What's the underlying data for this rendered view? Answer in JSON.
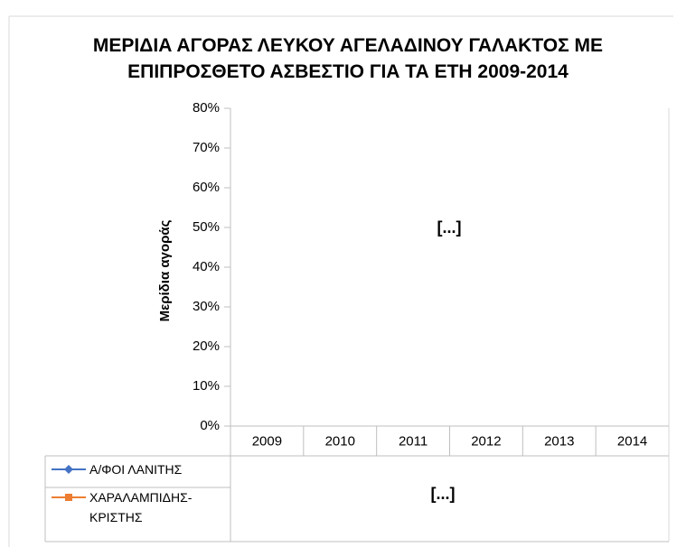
{
  "chart_data": {
    "type": "line",
    "title": "ΜΕΡΙΔΙΑ ΑΓΟΡΑΣ ΛΕΥΚΟΥ ΑΓΕΛΑΔΙΝΟΥ ΓΑΛΑΚΤΟΣ ΜΕ ΕΠΙΠΡΟΣΘΕΤΟ ΑΣΒΕΣΤΙΟ ΓΙΑ ΤΑ ΕΤΗ 2009-2014",
    "y_label": "Μερίδια αγοράς",
    "categories": [
      "2009",
      "2010",
      "2011",
      "2012",
      "2013",
      "2014"
    ],
    "series": [
      {
        "name": "Α/ΦΟΙ ΛΑΝΙΤΗΣ",
        "color": "#4472c4",
        "values": [
          null,
          null,
          null,
          null,
          null,
          null
        ]
      },
      {
        "name": "ΧΑΡΑΛΑΜΠΙΔΗΣ-ΚΡΙΣΤΗΣ",
        "color": "#ed7d31",
        "values": [
          null,
          null,
          null,
          null,
          null,
          null
        ]
      }
    ],
    "annotations": [
      "[...]",
      "[...]"
    ],
    "ylim": [
      0,
      80
    ],
    "yticks": [
      {
        "value": 0,
        "label": "0%"
      },
      {
        "value": 10,
        "label": "10%"
      },
      {
        "value": 20,
        "label": "20%"
      },
      {
        "value": 30,
        "label": "30%"
      },
      {
        "value": 40,
        "label": "40%"
      },
      {
        "value": 50,
        "label": "50%"
      },
      {
        "value": 60,
        "label": "60%"
      },
      {
        "value": 70,
        "label": "70%"
      },
      {
        "value": 80,
        "label": "80%"
      }
    ]
  }
}
